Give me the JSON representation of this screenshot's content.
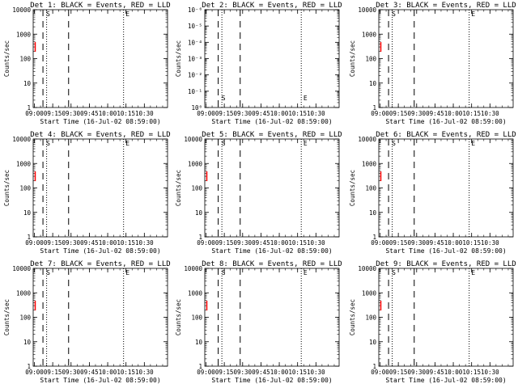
{
  "colors": {
    "events": "#000000",
    "lld": "#ff0000",
    "background": "#ffffff"
  },
  "chart_data": [
    {
      "type": "line",
      "title": "Det 1: BLACK = Events, RED = LLD",
      "xlabel": "Start Time (16-Jul-02 08:59:00)",
      "ylabel": "Counts/sec",
      "xticks": [
        "09:00",
        "09:15",
        "09:30",
        "09:45",
        "10:00",
        "10:15",
        "10:30"
      ],
      "ylog": true,
      "ylim": [
        1,
        10000
      ],
      "yticks": [
        "1",
        "10",
        "100",
        "1000",
        "10000"
      ],
      "dashed_lines": [
        "09:07",
        "09:28"
      ],
      "dotted_lines": [
        "09:10",
        "10:13"
      ],
      "markers": [
        {
          "x": "09:10",
          "label": "S"
        },
        {
          "x": "10:15",
          "label": "E"
        }
      ],
      "lld_marks": [
        {
          "x": "09:00",
          "y": 300
        }
      ],
      "series": [
        {
          "name": "BLACK = Events",
          "values": []
        },
        {
          "name": "RED = LLD",
          "values": []
        }
      ]
    },
    {
      "type": "line",
      "title": "Det 2: BLACK = Events, RED = LLD",
      "xlabel": "Start Time (16-Jul-02 08:59:00)",
      "ylabel": "Counts/sec",
      "xticks": [
        "09:00",
        "09:15",
        "09:30",
        "09:45",
        "10:00",
        "10:15",
        "10:30"
      ],
      "ylog": true,
      "ylim": [
        1,
        1e-06
      ],
      "yticks": [
        "10⁰",
        "10⁻¹",
        "10⁻²",
        "10⁻³",
        "10⁻⁴",
        "10⁻⁵",
        "10⁻⁶"
      ],
      "dashed_lines": [
        "09:10",
        "09:28"
      ],
      "dotted_lines": [
        "09:13",
        "10:18"
      ],
      "markers": [
        {
          "x": "09:13",
          "label": "S"
        },
        {
          "x": "10:20",
          "label": "E"
        }
      ],
      "lld_marks": [],
      "series": [
        {
          "name": "BLACK = Events",
          "values": []
        },
        {
          "name": "RED = LLD",
          "values": []
        }
      ]
    },
    {
      "type": "line",
      "title": "Det 3: BLACK = Events, RED = LLD",
      "xlabel": "Start Time (16-Jul-02 08:59:00)",
      "ylabel": "Counts/sec",
      "xticks": [
        "09:00",
        "09:15",
        "09:30",
        "09:45",
        "10:00",
        "10:15",
        "10:30"
      ],
      "ylog": true,
      "ylim": [
        1,
        10000
      ],
      "yticks": [
        "1",
        "10",
        "100",
        "1000",
        "10000"
      ],
      "dashed_lines": [
        "09:07",
        "09:28"
      ],
      "dotted_lines": [
        "09:10",
        "10:13"
      ],
      "markers": [
        {
          "x": "09:10",
          "label": "S"
        },
        {
          "x": "10:15",
          "label": "E"
        }
      ],
      "lld_marks": [
        {
          "x": "09:00",
          "y": 300
        }
      ],
      "series": [
        {
          "name": "BLACK = Events",
          "values": []
        },
        {
          "name": "RED = LLD",
          "values": []
        }
      ]
    },
    {
      "type": "line",
      "title": "Det 4: BLACK = Events, RED = LLD",
      "xlabel": "Start Time (16-Jul-02 08:59:00)",
      "ylabel": "Counts/sec",
      "xticks": [
        "09:00",
        "09:15",
        "09:30",
        "09:45",
        "10:00",
        "10:15",
        "10:30"
      ],
      "ylog": true,
      "ylim": [
        1,
        10000
      ],
      "yticks": [
        "1",
        "10",
        "100",
        "1000",
        "10000"
      ],
      "dashed_lines": [
        "09:07",
        "09:28"
      ],
      "dotted_lines": [
        "09:10",
        "10:13"
      ],
      "markers": [
        {
          "x": "09:10",
          "label": "S"
        },
        {
          "x": "10:15",
          "label": "E"
        }
      ],
      "lld_marks": [
        {
          "x": "09:00",
          "y": 300
        }
      ],
      "series": [
        {
          "name": "BLACK = Events",
          "values": []
        },
        {
          "name": "RED = LLD",
          "values": []
        }
      ]
    },
    {
      "type": "line",
      "title": "Det 5: BLACK = Events, RED = LLD",
      "xlabel": "Start Time (16-Jul-02 08:59:00)",
      "ylabel": "Counts/sec",
      "xticks": [
        "09:00",
        "09:15",
        "09:30",
        "09:45",
        "10:00",
        "10:15",
        "10:30"
      ],
      "ylog": true,
      "ylim": [
        1,
        10000
      ],
      "yticks": [
        "1",
        "10",
        "100",
        "1000",
        "10000"
      ],
      "dashed_lines": [
        "09:10",
        "09:28"
      ],
      "dotted_lines": [
        "09:13",
        "10:18"
      ],
      "markers": [
        {
          "x": "09:13",
          "label": "S"
        },
        {
          "x": "10:20",
          "label": "E"
        }
      ],
      "lld_marks": [
        {
          "x": "09:00",
          "y": 300
        }
      ],
      "series": [
        {
          "name": "BLACK = Events",
          "values": []
        },
        {
          "name": "RED = LLD",
          "values": []
        }
      ]
    },
    {
      "type": "line",
      "title": "Det 6: BLACK = Events, RED = LLD",
      "xlabel": "Start Time (16-Jul-02 08:59:00)",
      "ylabel": "Counts/sec",
      "xticks": [
        "09:00",
        "09:15",
        "09:30",
        "09:45",
        "10:00",
        "10:15",
        "10:30"
      ],
      "ylog": true,
      "ylim": [
        1,
        10000
      ],
      "yticks": [
        "1",
        "10",
        "100",
        "1000",
        "10000"
      ],
      "dashed_lines": [
        "09:07",
        "09:28"
      ],
      "dotted_lines": [
        "09:10",
        "10:13"
      ],
      "markers": [
        {
          "x": "09:10",
          "label": "S"
        },
        {
          "x": "10:15",
          "label": "E"
        }
      ],
      "lld_marks": [
        {
          "x": "09:00",
          "y": 300
        }
      ],
      "series": [
        {
          "name": "BLACK = Events",
          "values": []
        },
        {
          "name": "RED = LLD",
          "values": []
        }
      ]
    },
    {
      "type": "line",
      "title": "Det 7: BLACK = Events, RED = LLD",
      "xlabel": "Start Time (16-Jul-02 08:59:00)",
      "ylabel": "Counts/sec",
      "xticks": [
        "09:00",
        "09:15",
        "09:30",
        "09:45",
        "10:00",
        "10:15",
        "10:30"
      ],
      "ylog": true,
      "ylim": [
        1,
        10000
      ],
      "yticks": [
        "1",
        "10",
        "100",
        "1000",
        "10000"
      ],
      "dashed_lines": [
        "09:07",
        "09:28"
      ],
      "dotted_lines": [
        "09:10",
        "10:13"
      ],
      "markers": [
        {
          "x": "09:10",
          "label": "S"
        },
        {
          "x": "10:15",
          "label": "E"
        }
      ],
      "lld_marks": [
        {
          "x": "09:00",
          "y": 300
        }
      ],
      "series": [
        {
          "name": "BLACK = Events",
          "values": []
        },
        {
          "name": "RED = LLD",
          "values": []
        }
      ]
    },
    {
      "type": "line",
      "title": "Det 8: BLACK = Events, RED = LLD",
      "xlabel": "Start Time (16-Jul-02 08:59:00)",
      "ylabel": "Counts/sec",
      "xticks": [
        "09:00",
        "09:15",
        "09:30",
        "09:45",
        "10:00",
        "10:15",
        "10:30"
      ],
      "ylog": true,
      "ylim": [
        1,
        10000
      ],
      "yticks": [
        "1",
        "10",
        "100",
        "1000",
        "10000"
      ],
      "dashed_lines": [
        "09:10",
        "09:28"
      ],
      "dotted_lines": [
        "09:13",
        "10:18"
      ],
      "markers": [
        {
          "x": "09:13",
          "label": "S"
        },
        {
          "x": "10:20",
          "label": "E"
        }
      ],
      "lld_marks": [
        {
          "x": "09:00",
          "y": 300
        }
      ],
      "series": [
        {
          "name": "BLACK = Events",
          "values": []
        },
        {
          "name": "RED = LLD",
          "values": []
        }
      ]
    },
    {
      "type": "line",
      "title": "Det 9: BLACK = Events, RED = LLD",
      "xlabel": "Start Time (16-Jul-02 08:59:00)",
      "ylabel": "Counts/sec",
      "xticks": [
        "09:00",
        "09:15",
        "09:30",
        "09:45",
        "10:00",
        "10:15",
        "10:30"
      ],
      "ylog": true,
      "ylim": [
        1,
        10000
      ],
      "yticks": [
        "1",
        "10",
        "100",
        "1000",
        "10000"
      ],
      "dashed_lines": [
        "09:07",
        "09:28"
      ],
      "dotted_lines": [
        "09:10",
        "10:13"
      ],
      "markers": [
        {
          "x": "09:10",
          "label": "S"
        },
        {
          "x": "10:15",
          "label": "E"
        }
      ],
      "lld_marks": [
        {
          "x": "09:00",
          "y": 300
        }
      ],
      "series": [
        {
          "name": "BLACK = Events",
          "values": []
        },
        {
          "name": "RED = LLD",
          "values": []
        }
      ]
    }
  ]
}
